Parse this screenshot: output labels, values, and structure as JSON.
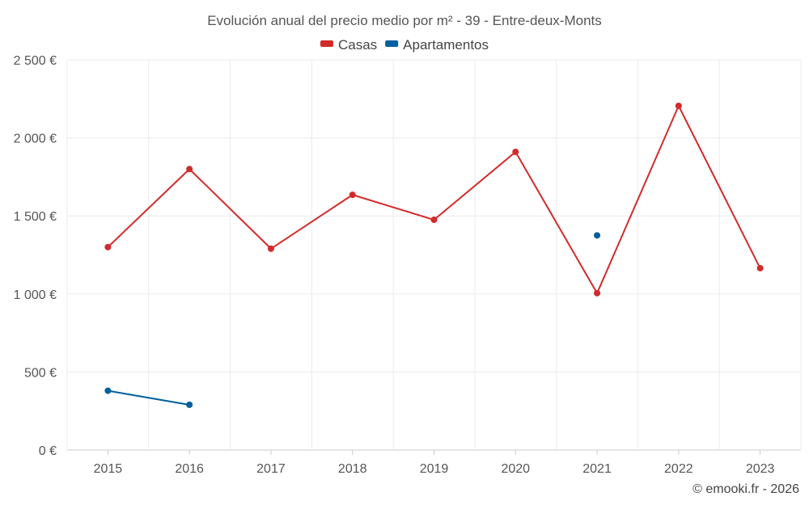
{
  "chart_data": {
    "type": "line",
    "title": "Evolución anual del precio medio por m² - 39 - Entre-deux-Monts",
    "categories": [
      "2015",
      "2016",
      "2017",
      "2018",
      "2019",
      "2020",
      "2021",
      "2022",
      "2023"
    ],
    "series": [
      {
        "name": "Casas",
        "color": "#d42a2a",
        "values": [
          1300,
          1800,
          1290,
          1635,
          1475,
          1910,
          1005,
          2205,
          1165
        ]
      },
      {
        "name": "Apartamentos",
        "color": "#005f9e",
        "values": [
          380,
          290,
          null,
          null,
          null,
          null,
          1375,
          null,
          null
        ]
      }
    ],
    "ylim": [
      0,
      2500
    ],
    "yticks": [
      0,
      500,
      1000,
      1500,
      2000,
      2500
    ],
    "ytick_labels": [
      "0 €",
      "500 €",
      "1 000 €",
      "1 500 €",
      "2 000 €",
      "2 500 €"
    ],
    "xlabel": "",
    "ylabel": "",
    "grid": true,
    "legend_position": "top-center"
  },
  "credit": "© emooki.fr - 2026"
}
